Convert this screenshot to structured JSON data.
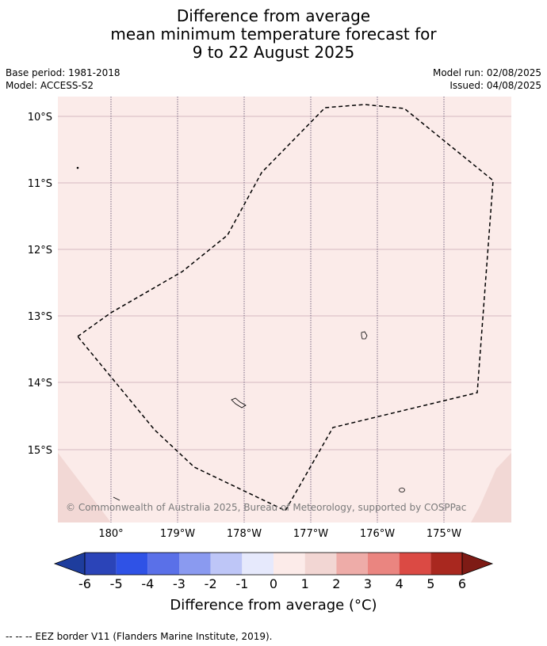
{
  "title": {
    "line1": "Difference from average",
    "line2": "mean minimum temperature forecast for",
    "line3": "9 to 22 August 2025"
  },
  "meta": {
    "base_period": "Base period: 1981-2018",
    "model": "Model: ACCESS-S2",
    "model_run": "Model run: 02/08/2025",
    "issued": "Issued: 04/08/2025"
  },
  "map": {
    "lat_labels": [
      "10°S",
      "11°S",
      "12°S",
      "13°S",
      "14°S",
      "15°S"
    ],
    "lon_labels": [
      "180°",
      "179°W",
      "178°W",
      "177°W",
      "176°W",
      "175°W"
    ],
    "background_category": "0 to 1",
    "colors": {
      "background": "#fbebe9",
      "corner_fill": "#f2d8d5",
      "gridline": "#c7a9b3",
      "eez": "#000000"
    },
    "copyright": "© Commonwealth of Australia 2025, Bureau of Meteorology, supported by COSPPac"
  },
  "colorbar": {
    "ticks": [
      "-6",
      "-5",
      "-4",
      "-3",
      "-2",
      "-1",
      "0",
      "1",
      "2",
      "3",
      "4",
      "5",
      "6"
    ],
    "colors": [
      "#1e3d9d",
      "#2b44b8",
      "#2f52e6",
      "#5a70e8",
      "#8a9af0",
      "#bec6f7",
      "#e6e9fc",
      "#fcebe9",
      "#f2d6d3",
      "#eeaca8",
      "#ea8580",
      "#db4a44",
      "#a9281f",
      "#7e1b15"
    ],
    "label": "Difference from average (°C)"
  },
  "footer": "-- -- -- EEZ border V11 (Flanders Marine Institute, 2019)."
}
